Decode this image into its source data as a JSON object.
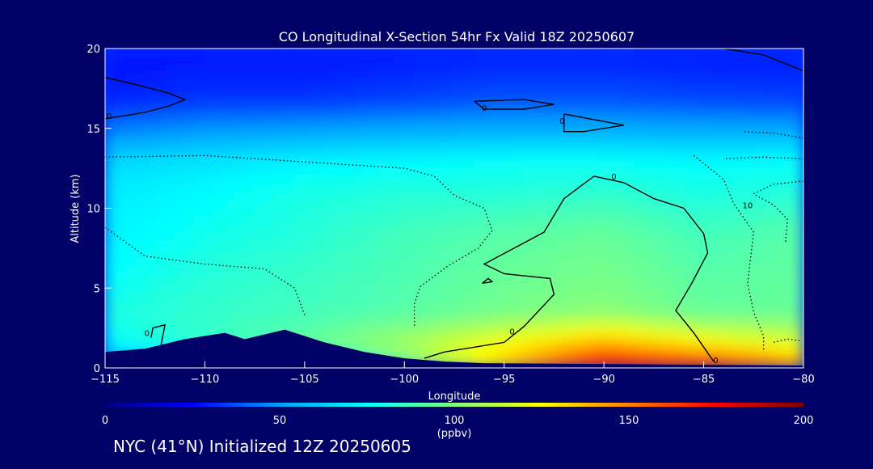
{
  "chart_data": {
    "type": "heatmap",
    "title": "CO Longitudinal X-Section 54hr  Fx Valid 18Z 20250607",
    "xlabel": "Longitude",
    "ylabel": "Altitude (km)",
    "xlim": [
      -115,
      -80
    ],
    "ylim": [
      0,
      20
    ],
    "x_ticks": [
      -115,
      -110,
      -105,
      -100,
      -95,
      -90,
      -85,
      -80
    ],
    "x_tick_labels": [
      "−115",
      "−110",
      "−105",
      "−100",
      "−95",
      "−90",
      "−85",
      "−80"
    ],
    "y_ticks": [
      0,
      5,
      10,
      15,
      20
    ],
    "y_tick_labels": [
      "0",
      "5",
      "10",
      "15",
      "20"
    ],
    "colorbar": {
      "label": "(ppbv)",
      "min": 0,
      "max": 200,
      "ticks": [
        0,
        50,
        100,
        150,
        200
      ],
      "colors": [
        "#000080",
        "#0000ff",
        "#00a0ff",
        "#00ffff",
        "#80ff80",
        "#ffff00",
        "#ff8000",
        "#ff0000",
        "#800000"
      ]
    },
    "altitude_levels_km": [
      0.25,
      1.5,
      3.5,
      6,
      8.5,
      11,
      13,
      14.8,
      16.8,
      19
    ],
    "longitudes": [
      -115,
      -110,
      -105,
      -100,
      -95,
      -90,
      -85,
      -80
    ],
    "co_ppbv": [
      [
        40,
        60,
        65,
        95,
        135,
        178,
        170,
        145
      ],
      [
        75,
        85,
        95,
        108,
        125,
        142,
        128,
        118
      ],
      [
        80,
        85,
        88,
        92,
        98,
        102,
        95,
        95
      ],
      [
        75,
        82,
        86,
        90,
        95,
        98,
        92,
        94
      ],
      [
        72,
        78,
        82,
        88,
        92,
        95,
        88,
        92
      ],
      [
        70,
        74,
        80,
        82,
        82,
        84,
        80,
        82
      ],
      [
        65,
        68,
        72,
        74,
        76,
        76,
        74,
        76
      ],
      [
        45,
        50,
        52,
        54,
        55,
        55,
        54,
        54
      ],
      [
        30,
        33,
        33,
        35,
        38,
        38,
        36,
        35
      ],
      [
        28,
        29,
        29,
        30,
        31,
        31,
        30,
        30
      ]
    ],
    "terrain_km": [
      [
        -115,
        1.0
      ],
      [
        -113,
        1.2
      ],
      [
        -111,
        1.8
      ],
      [
        -109,
        2.2
      ],
      [
        -108,
        1.8
      ],
      [
        -107,
        2.1
      ],
      [
        -106,
        2.4
      ],
      [
        -104,
        1.6
      ],
      [
        -102,
        1.0
      ],
      [
        -100,
        0.6
      ],
      [
        -98,
        0.4
      ],
      [
        -96,
        0.3
      ],
      [
        -90,
        0.25
      ],
      [
        -85,
        0.2
      ],
      [
        -80,
        0.15
      ]
    ],
    "contour_labels": [
      "0",
      "0",
      "0",
      "0",
      "0",
      "10",
      "0",
      "0"
    ],
    "grid": false
  },
  "footer": "NYC (41°N) Initialized 12Z 20250605"
}
